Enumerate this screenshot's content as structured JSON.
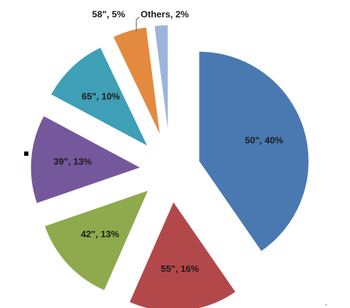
{
  "chart_data": {
    "type": "pie",
    "exploded": true,
    "title": "",
    "slices": [
      {
        "label": "50\", 40%",
        "value": 40,
        "color": "#4a79b2"
      },
      {
        "label": "55\", 16%",
        "value": 16,
        "color": "#b3484b"
      },
      {
        "label": "42\", 13%",
        "value": 13,
        "color": "#8eaa4c"
      },
      {
        "label": "39\", 13%",
        "value": 13,
        "color": "#74589b"
      },
      {
        "label": "65\", 10%",
        "value": 10,
        "color": "#3f9fb6"
      },
      {
        "label": "58\", 5%",
        "value": 5,
        "color": "#e48a3e"
      },
      {
        "label": "Others, 2%",
        "value": 2,
        "color": "#9cb4dc"
      }
    ]
  }
}
